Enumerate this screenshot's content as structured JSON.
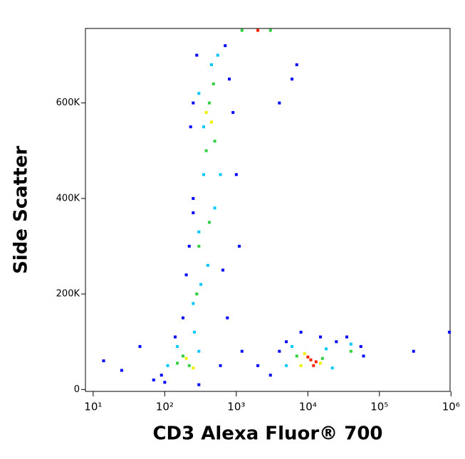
{
  "chart_data": {
    "type": "scatter",
    "xlabel": "CD3 Alexa Fluor® 700",
    "ylabel": "Side Scatter",
    "xscale": "log",
    "xlim": [
      7.8,
      970000
    ],
    "ylim": [
      -4000,
      756000
    ],
    "xticks": [
      {
        "value": 10,
        "label": "10¹"
      },
      {
        "value": 100,
        "label": "10²"
      },
      {
        "value": 1000,
        "label": "10³"
      },
      {
        "value": 10000,
        "label": "10⁴"
      },
      {
        "value": 100000,
        "label": "10⁵"
      },
      {
        "value": 1000000,
        "label": "10⁶"
      }
    ],
    "yticks": [
      0,
      {
        "value": 200000,
        "label": "200K"
      },
      {
        "value": 400000,
        "label": "400K"
      },
      {
        "value": 600000,
        "label": "600K"
      }
    ],
    "series": [
      {
        "color": "#0000ff",
        "x": [
          14,
          25,
          45,
          70,
          90,
          140,
          180,
          200,
          220,
          250,
          230,
          250,
          280,
          700,
          800,
          900,
          1000,
          1100,
          650,
          750,
          1200,
          2000,
          3000,
          4000,
          5000,
          8000,
          15000,
          25000,
          35000,
          55000,
          60000,
          300000,
          950000,
          6000,
          7000,
          4000,
          600,
          300,
          100,
          250
        ],
        "values": [
          60000,
          40000,
          90000,
          20000,
          30000,
          110000,
          150000,
          240000,
          300000,
          370000,
          550000,
          600000,
          700000,
          720000,
          650000,
          580000,
          450000,
          300000,
          250000,
          150000,
          80000,
          50000,
          30000,
          80000,
          100000,
          120000,
          110000,
          100000,
          110000,
          90000,
          70000,
          80000,
          120000,
          650000,
          680000,
          600000,
          50000,
          10000,
          15000,
          400000
        ]
      },
      {
        "color": "#00c8ff",
        "x": [
          150,
          260,
          300,
          110,
          250,
          320,
          400,
          300,
          500,
          350,
          600,
          300,
          450,
          550,
          350,
          6000,
          18000,
          5000,
          22000,
          40000
        ],
        "values": [
          90000,
          120000,
          80000,
          50000,
          180000,
          220000,
          260000,
          330000,
          380000,
          450000,
          450000,
          620000,
          680000,
          700000,
          550000,
          90000,
          85000,
          50000,
          45000,
          95000
        ]
      },
      {
        "color": "#30d040",
        "x": [
          180,
          220,
          300,
          420,
          380,
          500,
          420,
          480,
          7000,
          16000,
          40000,
          150,
          280,
          1200,
          3000
        ],
        "values": [
          70000,
          50000,
          300000,
          350000,
          500000,
          520000,
          600000,
          640000,
          70000,
          65000,
          80000,
          55000,
          200000,
          752000,
          752000
        ]
      },
      {
        "color": "#f0f000",
        "x": [
          200,
          250,
          450,
          380,
          9000,
          15000,
          8000
        ],
        "values": [
          65000,
          45000,
          560000,
          580000,
          75000,
          55000,
          50000
        ]
      },
      {
        "color": "#ff2000",
        "x": [
          11000,
          13000,
          10000,
          12000,
          2000
        ],
        "values": [
          62000,
          58000,
          68000,
          50000,
          752000
        ]
      }
    ]
  }
}
